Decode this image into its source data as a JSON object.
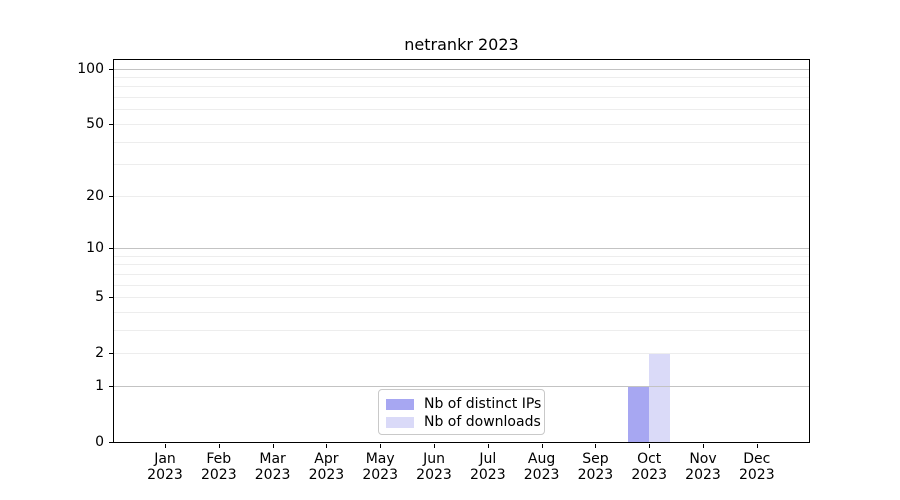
{
  "chart_data": {
    "type": "bar",
    "title": "netrankr 2023",
    "categories": [
      "Jan 2023",
      "Feb 2023",
      "Mar 2023",
      "Apr 2023",
      "May 2023",
      "Jun 2023",
      "Jul 2023",
      "Aug 2023",
      "Sep 2023",
      "Oct 2023",
      "Nov 2023",
      "Dec 2023"
    ],
    "series": [
      {
        "name": "Nb of distinct IPs",
        "color": "#a7a7f2",
        "values": [
          0,
          0,
          0,
          0,
          0,
          0,
          0,
          0,
          0,
          1,
          0,
          0
        ]
      },
      {
        "name": "Nb of downloads",
        "color": "#dadaf8",
        "values": [
          0,
          0,
          0,
          0,
          0,
          0,
          0,
          0,
          0,
          2,
          0,
          0
        ]
      }
    ],
    "y_axis": {
      "scale": "log1p",
      "tick_values": [
        0,
        1,
        2,
        5,
        10,
        20,
        50,
        100
      ],
      "major_gridlines": [
        1,
        10,
        100
      ],
      "minor_gridlines": [
        2,
        3,
        4,
        5,
        6,
        7,
        8,
        9,
        20,
        30,
        40,
        50,
        60,
        70,
        80,
        90
      ],
      "range": [
        0,
        115
      ]
    },
    "x_axis": {
      "tick_count": 12
    },
    "legend_position": "lower center",
    "grid": true,
    "style": {
      "spine_color": "#000000",
      "grid_major_color": "#c3c3c3",
      "grid_minor_color": "#ededed",
      "background": "#ffffff"
    }
  }
}
